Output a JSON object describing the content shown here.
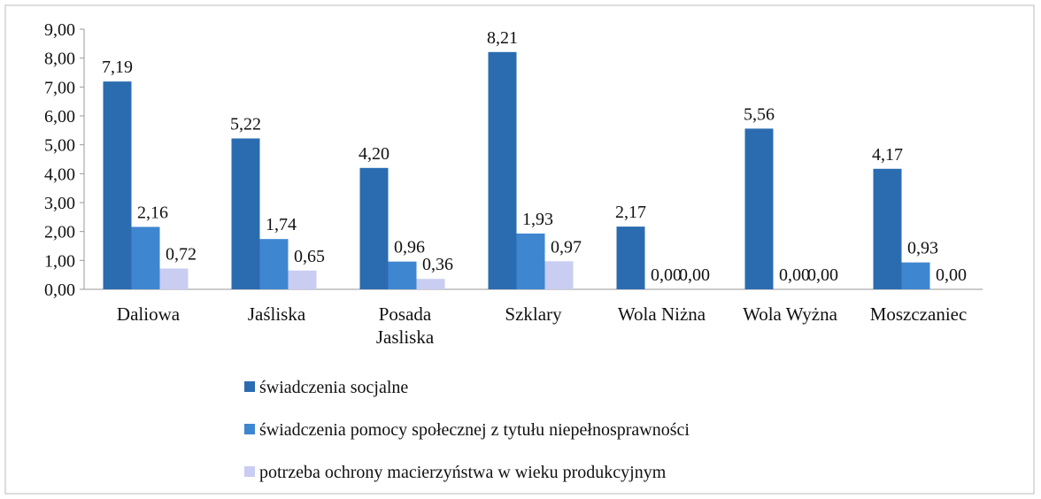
{
  "chart_data": {
    "type": "bar",
    "categories": [
      "Daliowa",
      "Jaśliska",
      "Posada Jasliska",
      "Szklary",
      "Wola Niżna",
      "Wola Wyżna",
      "Moszczaniec"
    ],
    "series": [
      {
        "name": "świadczenia socjalne",
        "color": "#2b6cb0",
        "values": [
          7.19,
          5.22,
          4.2,
          8.21,
          2.17,
          5.56,
          4.17
        ],
        "value_labels": [
          "7,19",
          "5,22",
          "4,20",
          "8,21",
          "2,17",
          "5,56",
          "4,17"
        ]
      },
      {
        "name": "świadczenia pomocy społecznej z tytułu niepełnosprawności",
        "color": "#3f86d0",
        "values": [
          2.16,
          1.74,
          0.96,
          1.93,
          0.0,
          0.0,
          0.93
        ],
        "value_labels": [
          "2,16",
          "1,74",
          "0,96",
          "1,93",
          "0,00",
          "0,00",
          "0,93"
        ]
      },
      {
        "name": "potrzeba ochrony macierzyństwa w wieku produkcyjnym",
        "color": "#c9cdf2",
        "values": [
          0.72,
          0.65,
          0.36,
          0.97,
          0.0,
          0.0,
          0.0
        ],
        "value_labels": [
          "0,72",
          "0,65",
          "0,36",
          "0,97",
          "0,00",
          "0,00",
          "0,00"
        ]
      }
    ],
    "ylim": [
      0,
      9
    ],
    "yticks": [
      {
        "value": 0,
        "label": "0,00"
      },
      {
        "value": 1,
        "label": "1,00"
      },
      {
        "value": 2,
        "label": "2,00"
      },
      {
        "value": 3,
        "label": "3,00"
      },
      {
        "value": 4,
        "label": "4,00"
      },
      {
        "value": 5,
        "label": "5,00"
      },
      {
        "value": 6,
        "label": "6,00"
      },
      {
        "value": 7,
        "label": "7,00"
      },
      {
        "value": 8,
        "label": "8,00"
      },
      {
        "value": 9,
        "label": "9,00"
      }
    ],
    "grid": false,
    "legend": "bottom"
  }
}
